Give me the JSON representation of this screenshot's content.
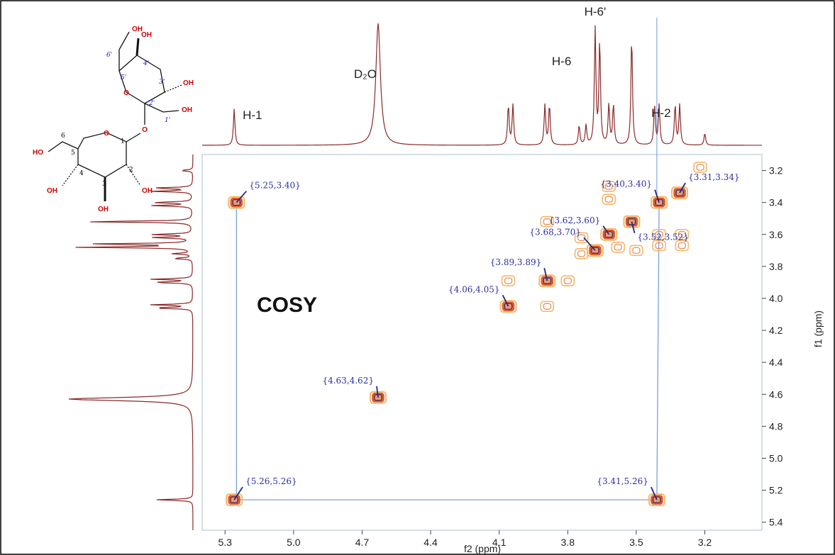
{
  "chart_data": {
    "type": "heatmap",
    "subtype": "2D COSY NMR spectrum",
    "title": "COSY",
    "xlabel": "f2 (ppm)",
    "ylabel": "f1 (ppm)",
    "x_axis_reversed": true,
    "y_axis_increases_downward": true,
    "xlim": [
      5.4,
      2.95
    ],
    "ylim": [
      3.1,
      5.45
    ],
    "x_ticks": [
      "5.3",
      "5.0",
      "4.7",
      "4.4",
      "4.1",
      "3.8",
      "3.5",
      "3.2"
    ],
    "y_ticks": [
      "3.2",
      "3.4",
      "3.6",
      "3.8",
      "4.0",
      "4.2",
      "4.4",
      "4.6",
      "4.8",
      "5.0",
      "5.2",
      "5.4"
    ],
    "labeled_cross_peaks": [
      {
        "label": "{5.25,3.40}",
        "x": 5.25,
        "y": 3.4
      },
      {
        "label": "{3.40,3.40}",
        "x": 3.4,
        "y": 3.4
      },
      {
        "label": "{3.31,3.34}",
        "x": 3.31,
        "y": 3.34
      },
      {
        "label": "{3.62,3.60}",
        "x": 3.62,
        "y": 3.6
      },
      {
        "label": "{3.52,3.52}",
        "x": 3.52,
        "y": 3.52
      },
      {
        "label": "{3.68,3.70}",
        "x": 3.68,
        "y": 3.7
      },
      {
        "label": "{3.89,3.89}",
        "x": 3.89,
        "y": 3.89
      },
      {
        "label": "{4.06,4.05}",
        "x": 4.06,
        "y": 4.05
      },
      {
        "label": "{4.63,4.62}",
        "x": 4.63,
        "y": 4.62
      },
      {
        "label": "{5.26,5.26}",
        "x": 5.26,
        "y": 5.26
      },
      {
        "label": "{3.41,5.26}",
        "x": 3.41,
        "y": 5.26
      }
    ],
    "unlabeled_contours": [
      {
        "x": 3.62,
        "y": 3.3
      },
      {
        "x": 3.62,
        "y": 3.38
      },
      {
        "x": 3.3,
        "y": 3.6
      },
      {
        "x": 3.3,
        "y": 3.67
      },
      {
        "x": 3.4,
        "y": 3.6
      },
      {
        "x": 3.4,
        "y": 3.67
      },
      {
        "x": 3.74,
        "y": 3.62
      },
      {
        "x": 3.74,
        "y": 3.72
      },
      {
        "x": 3.89,
        "y": 3.52
      },
      {
        "x": 3.89,
        "y": 4.05
      },
      {
        "x": 4.06,
        "y": 3.89
      },
      {
        "x": 3.8,
        "y": 3.89
      },
      {
        "x": 3.58,
        "y": 3.68
      },
      {
        "x": 3.5,
        "y": 3.7
      },
      {
        "x": 3.22,
        "y": 3.18
      }
    ],
    "correlation_lines": [
      {
        "from": [
          5.25,
          3.4
        ],
        "to": [
          5.25,
          5.26
        ]
      },
      {
        "from": [
          5.26,
          5.26
        ],
        "to": [
          3.41,
          5.26
        ]
      },
      {
        "from": [
          3.41,
          5.26
        ],
        "to": [
          3.4,
          3.4
        ]
      }
    ],
    "projection_1d_peaks_ppm": [
      5.26,
      4.63,
      4.06,
      4.04,
      3.9,
      3.88,
      3.75,
      3.72,
      3.68,
      3.66,
      3.62,
      3.6,
      3.52,
      3.42,
      3.4,
      3.33,
      3.31,
      3.2
    ],
    "peak_labels": [
      {
        "text": "H-1",
        "ppm": 5.26
      },
      {
        "text": "D₂O",
        "ppm": 4.63
      },
      {
        "text": "H-6",
        "ppm": 3.74
      },
      {
        "text": "H-6'",
        "ppm": 3.68
      },
      {
        "text": "H-2",
        "ppm": 3.41
      }
    ],
    "grid": false,
    "colors": {
      "contour_outer": "#f4b86a",
      "contour_mid": "#e05b2a",
      "contour_core": "#3a2f7a",
      "projection_line": "#8b2a2a",
      "annotation": "#2b2fa0",
      "correlation_line": "#7aa0e0",
      "highlight_label": "#1515e0"
    }
  },
  "structure": {
    "hydroxyl_label": "OH",
    "ho_label": "HO",
    "ring_oxygen": "O",
    "glucose_numbers": [
      "1",
      "2",
      "3",
      "4",
      "5",
      "6"
    ],
    "fructose_numbers": [
      "2'",
      "3'",
      "4'",
      "5'",
      "6'",
      "1'"
    ]
  }
}
